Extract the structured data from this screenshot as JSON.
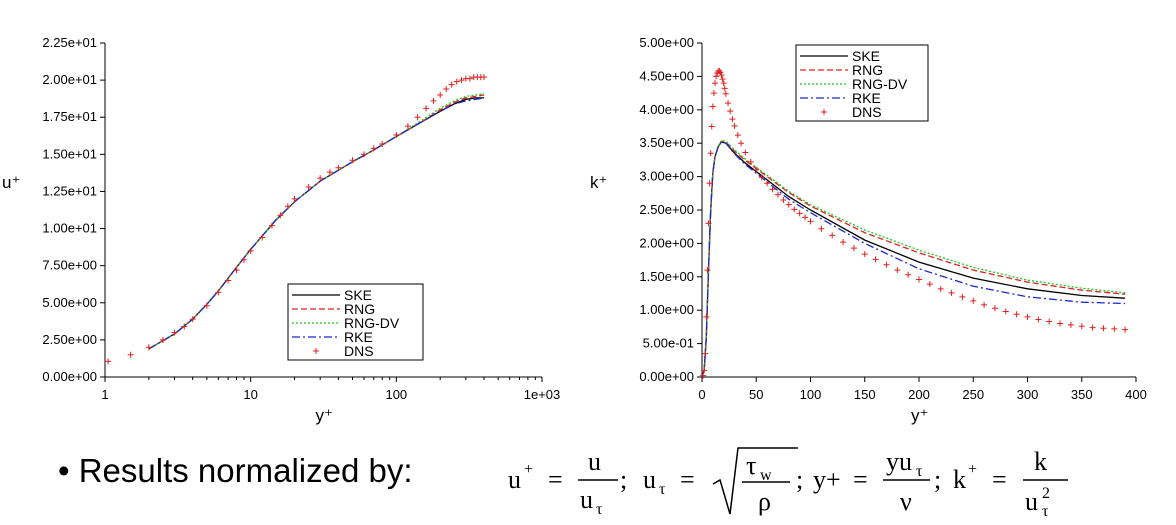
{
  "chart_data": [
    {
      "type": "line",
      "ylabel": "u⁺",
      "xlabel": "y⁺",
      "xscale": "log",
      "xlim": [
        1,
        1000
      ],
      "ylim": [
        0,
        22.5
      ],
      "xticks": [
        "1",
        "10",
        "100",
        "1e+03"
      ],
      "yticks": [
        "0.00e+00",
        "2.50e+00",
        "5.00e+00",
        "7.50e+00",
        "1.00e+01",
        "1.25e+01",
        "1.50e+01",
        "1.75e+01",
        "2.00e+01",
        "2.25e+01"
      ],
      "legend_position": "bottom-right",
      "series": [
        {
          "name": "SKE",
          "color": "#000000",
          "style": "solid",
          "x": [
            2,
            3,
            4,
            5,
            6,
            8,
            10,
            15,
            20,
            30,
            50,
            70,
            100,
            150,
            200,
            250,
            300,
            350,
            400
          ],
          "y": [
            1.9,
            2.9,
            3.9,
            4.9,
            5.8,
            7.4,
            8.6,
            10.6,
            11.8,
            13.2,
            14.5,
            15.3,
            16.2,
            17.2,
            17.9,
            18.4,
            18.7,
            18.8,
            18.8
          ]
        },
        {
          "name": "RNG",
          "color": "#e0201e",
          "style": "dashed",
          "x": [
            2,
            3,
            4,
            5,
            6,
            8,
            10,
            15,
            20,
            30,
            50,
            70,
            100,
            150,
            200,
            250,
            300,
            350,
            400
          ],
          "y": [
            1.9,
            2.9,
            3.9,
            4.9,
            5.8,
            7.4,
            8.6,
            10.6,
            11.8,
            13.2,
            14.5,
            15.3,
            16.2,
            17.2,
            18.0,
            18.5,
            18.8,
            18.9,
            19.0
          ]
        },
        {
          "name": "RNG-DV",
          "color": "#1ec81e",
          "style": "dotted",
          "x": [
            2,
            3,
            4,
            5,
            6,
            8,
            10,
            15,
            20,
            30,
            50,
            70,
            100,
            150,
            200,
            250,
            300,
            350,
            400
          ],
          "y": [
            1.9,
            2.9,
            3.9,
            4.9,
            5.8,
            7.4,
            8.6,
            10.6,
            11.8,
            13.2,
            14.5,
            15.3,
            16.2,
            17.3,
            18.1,
            18.6,
            18.9,
            19.0,
            19.1
          ]
        },
        {
          "name": "RKE",
          "color": "#1e28c8",
          "style": "dashdot",
          "x": [
            2,
            3,
            4,
            5,
            6,
            8,
            10,
            15,
            20,
            30,
            50,
            70,
            100,
            150,
            200,
            250,
            300,
            350,
            400
          ],
          "y": [
            1.9,
            2.9,
            3.9,
            4.9,
            5.8,
            7.4,
            8.6,
            10.6,
            11.8,
            13.2,
            14.5,
            15.3,
            16.2,
            17.2,
            17.9,
            18.4,
            18.6,
            18.7,
            18.8
          ]
        },
        {
          "name": "DNS",
          "color": "#e0201e",
          "style": "plus",
          "x": [
            1.05,
            1.5,
            2,
            2.5,
            3,
            3.5,
            4,
            5,
            6,
            7,
            8,
            9,
            10,
            12,
            14,
            16,
            18,
            20,
            25,
            30,
            35,
            40,
            50,
            60,
            70,
            80,
            100,
            120,
            140,
            160,
            180,
            200,
            220,
            240,
            260,
            280,
            300,
            320,
            340,
            360,
            380,
            400
          ],
          "y": [
            1.05,
            1.5,
            2.0,
            2.5,
            3.0,
            3.4,
            3.9,
            4.8,
            5.7,
            6.5,
            7.2,
            7.9,
            8.5,
            9.4,
            10.2,
            10.9,
            11.5,
            12.0,
            12.8,
            13.4,
            13.8,
            14.1,
            14.6,
            15.0,
            15.4,
            15.7,
            16.3,
            16.9,
            17.5,
            18.1,
            18.6,
            19.0,
            19.4,
            19.7,
            19.9,
            20.0,
            20.1,
            20.1,
            20.2,
            20.2,
            20.2,
            20.2
          ]
        }
      ]
    },
    {
      "type": "line",
      "ylabel": "k⁺",
      "xlabel": "y⁺",
      "xlim": [
        0,
        400
      ],
      "ylim": [
        0,
        5
      ],
      "xticks": [
        "0",
        "50",
        "100",
        "150",
        "200",
        "250",
        "300",
        "350",
        "400"
      ],
      "yticks": [
        "0.00e+00",
        "5.00e-01",
        "1.00e+00",
        "1.50e+00",
        "2.00e+00",
        "2.50e+00",
        "3.00e+00",
        "3.50e+00",
        "4.00e+00",
        "4.50e+00",
        "5.00e+00"
      ],
      "legend_position": "top-right",
      "series": [
        {
          "name": "SKE",
          "color": "#000000",
          "style": "solid",
          "x": [
            0,
            2,
            4,
            6,
            8,
            10,
            12,
            15,
            18,
            22,
            30,
            40,
            60,
            80,
            100,
            150,
            200,
            250,
            300,
            350,
            390
          ],
          "y": [
            0,
            0.1,
            0.6,
            1.6,
            2.5,
            3.05,
            3.3,
            3.45,
            3.52,
            3.5,
            3.35,
            3.2,
            2.95,
            2.7,
            2.5,
            2.05,
            1.72,
            1.48,
            1.32,
            1.22,
            1.18
          ]
        },
        {
          "name": "RNG",
          "color": "#e0201e",
          "style": "dashed",
          "x": [
            0,
            2,
            4,
            6,
            8,
            10,
            12,
            15,
            18,
            22,
            30,
            40,
            60,
            80,
            100,
            150,
            200,
            250,
            300,
            350,
            390
          ],
          "y": [
            0,
            0.1,
            0.6,
            1.6,
            2.5,
            3.05,
            3.3,
            3.45,
            3.53,
            3.52,
            3.38,
            3.24,
            3.0,
            2.76,
            2.56,
            2.16,
            1.86,
            1.6,
            1.42,
            1.3,
            1.24
          ]
        },
        {
          "name": "RNG-DV",
          "color": "#1ec81e",
          "style": "dotted",
          "x": [
            0,
            2,
            4,
            6,
            8,
            10,
            12,
            15,
            18,
            22,
            30,
            40,
            60,
            80,
            100,
            150,
            200,
            250,
            300,
            350,
            390
          ],
          "y": [
            0,
            0.1,
            0.6,
            1.6,
            2.5,
            3.05,
            3.3,
            3.46,
            3.54,
            3.53,
            3.4,
            3.26,
            3.02,
            2.78,
            2.58,
            2.2,
            1.9,
            1.64,
            1.45,
            1.33,
            1.26
          ]
        },
        {
          "name": "RKE",
          "color": "#1e28c8",
          "style": "dashdot",
          "x": [
            0,
            2,
            4,
            6,
            8,
            10,
            12,
            15,
            18,
            22,
            30,
            40,
            60,
            80,
            100,
            150,
            200,
            250,
            300,
            350,
            390
          ],
          "y": [
            0,
            0.1,
            0.6,
            1.6,
            2.5,
            3.05,
            3.3,
            3.45,
            3.52,
            3.5,
            3.34,
            3.18,
            2.92,
            2.66,
            2.46,
            2.0,
            1.62,
            1.36,
            1.2,
            1.12,
            1.1
          ]
        },
        {
          "name": "DNS",
          "color": "#e0201e",
          "style": "plus",
          "x": [
            1,
            2,
            3,
            4,
            5,
            6,
            7,
            8,
            9,
            10,
            11,
            12,
            13,
            14,
            15,
            16,
            17,
            18,
            19,
            20,
            21,
            22,
            24,
            26,
            28,
            30,
            33,
            36,
            40,
            45,
            50,
            55,
            60,
            65,
            70,
            75,
            80,
            85,
            90,
            95,
            100,
            110,
            120,
            130,
            140,
            150,
            160,
            170,
            180,
            190,
            200,
            210,
            220,
            230,
            240,
            250,
            260,
            270,
            280,
            290,
            300,
            310,
            320,
            330,
            340,
            350,
            360,
            370,
            380,
            390
          ],
          "y": [
            0.02,
            0.1,
            0.35,
            0.9,
            1.6,
            2.3,
            2.9,
            3.35,
            3.75,
            4.05,
            4.25,
            4.4,
            4.5,
            4.55,
            4.58,
            4.58,
            4.56,
            4.52,
            4.46,
            4.4,
            4.32,
            4.24,
            4.1,
            3.98,
            3.86,
            3.76,
            3.62,
            3.5,
            3.36,
            3.22,
            3.1,
            2.99,
            2.9,
            2.81,
            2.73,
            2.65,
            2.58,
            2.51,
            2.45,
            2.39,
            2.33,
            2.22,
            2.12,
            2.02,
            1.93,
            1.84,
            1.76,
            1.68,
            1.6,
            1.53,
            1.46,
            1.39,
            1.32,
            1.26,
            1.2,
            1.14,
            1.08,
            1.03,
            0.98,
            0.94,
            0.9,
            0.86,
            0.83,
            0.8,
            0.78,
            0.76,
            0.74,
            0.73,
            0.72,
            0.71
          ]
        }
      ]
    }
  ],
  "bottom": {
    "bullet": "• Results normalized by:"
  }
}
